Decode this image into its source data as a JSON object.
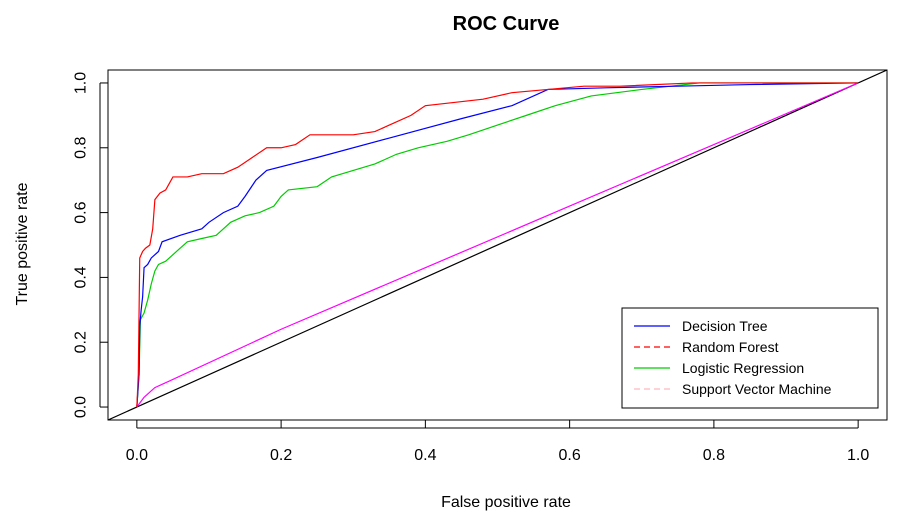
{
  "chart_data": {
    "type": "line",
    "title": "ROC Curve",
    "xlabel": "False positive rate",
    "ylabel": "True positive rate",
    "xlim": [
      -0.04,
      1.04
    ],
    "ylim": [
      -0.04,
      1.04
    ],
    "xticks": [
      "0.0",
      "0.2",
      "0.4",
      "0.6",
      "0.8",
      "1.0"
    ],
    "yticks": [
      "0.0",
      "0.2",
      "0.4",
      "0.6",
      "0.8",
      "1.0"
    ],
    "grid": false,
    "legend_position": "bottom-right",
    "series": [
      {
        "name": "Decision Tree",
        "color": "#0000ff",
        "dash": "solid",
        "points": [
          [
            0,
            0
          ],
          [
            0.003,
            0.1
          ],
          [
            0.004,
            0.25
          ],
          [
            0.006,
            0.3
          ],
          [
            0.008,
            0.34
          ],
          [
            0.01,
            0.43
          ],
          [
            0.015,
            0.44
          ],
          [
            0.02,
            0.46
          ],
          [
            0.03,
            0.48
          ],
          [
            0.035,
            0.51
          ],
          [
            0.06,
            0.53
          ],
          [
            0.09,
            0.55
          ],
          [
            0.1,
            0.57
          ],
          [
            0.12,
            0.6
          ],
          [
            0.14,
            0.62
          ],
          [
            0.15,
            0.65
          ],
          [
            0.165,
            0.7
          ],
          [
            0.18,
            0.73
          ],
          [
            0.25,
            0.77
          ],
          [
            0.35,
            0.83
          ],
          [
            0.45,
            0.89
          ],
          [
            0.52,
            0.93
          ],
          [
            0.57,
            0.98
          ],
          [
            0.65,
            0.985
          ],
          [
            0.75,
            0.99
          ],
          [
            0.85,
            0.995
          ],
          [
            1,
            1
          ]
        ]
      },
      {
        "name": "Random Forest",
        "color": "#ff0000",
        "dash": "dashed",
        "points": [
          [
            0,
            0
          ],
          [
            0.002,
            0.1
          ],
          [
            0.004,
            0.46
          ],
          [
            0.008,
            0.48
          ],
          [
            0.012,
            0.49
          ],
          [
            0.018,
            0.5
          ],
          [
            0.022,
            0.55
          ],
          [
            0.025,
            0.64
          ],
          [
            0.032,
            0.66
          ],
          [
            0.04,
            0.67
          ],
          [
            0.045,
            0.69
          ],
          [
            0.05,
            0.71
          ],
          [
            0.07,
            0.71
          ],
          [
            0.09,
            0.72
          ],
          [
            0.12,
            0.72
          ],
          [
            0.14,
            0.74
          ],
          [
            0.16,
            0.77
          ],
          [
            0.18,
            0.8
          ],
          [
            0.2,
            0.8
          ],
          [
            0.22,
            0.81
          ],
          [
            0.24,
            0.84
          ],
          [
            0.3,
            0.84
          ],
          [
            0.33,
            0.85
          ],
          [
            0.35,
            0.87
          ],
          [
            0.38,
            0.9
          ],
          [
            0.4,
            0.93
          ],
          [
            0.44,
            0.94
          ],
          [
            0.48,
            0.95
          ],
          [
            0.52,
            0.97
          ],
          [
            0.57,
            0.98
          ],
          [
            0.62,
            0.99
          ],
          [
            0.67,
            0.99
          ],
          [
            0.77,
            1
          ],
          [
            1,
            1
          ]
        ]
      },
      {
        "name": "Logistic Regression",
        "color": "#00cc00",
        "dash": "solid",
        "points": [
          [
            0,
            0
          ],
          [
            0.003,
            0.1
          ],
          [
            0.005,
            0.27
          ],
          [
            0.01,
            0.29
          ],
          [
            0.015,
            0.33
          ],
          [
            0.02,
            0.38
          ],
          [
            0.025,
            0.42
          ],
          [
            0.03,
            0.44
          ],
          [
            0.04,
            0.45
          ],
          [
            0.05,
            0.47
          ],
          [
            0.06,
            0.49
          ],
          [
            0.07,
            0.51
          ],
          [
            0.09,
            0.52
          ],
          [
            0.11,
            0.53
          ],
          [
            0.12,
            0.55
          ],
          [
            0.13,
            0.57
          ],
          [
            0.15,
            0.59
          ],
          [
            0.17,
            0.6
          ],
          [
            0.19,
            0.62
          ],
          [
            0.2,
            0.65
          ],
          [
            0.21,
            0.67
          ],
          [
            0.25,
            0.68
          ],
          [
            0.27,
            0.71
          ],
          [
            0.3,
            0.73
          ],
          [
            0.33,
            0.75
          ],
          [
            0.36,
            0.78
          ],
          [
            0.39,
            0.8
          ],
          [
            0.43,
            0.82
          ],
          [
            0.46,
            0.84
          ],
          [
            0.5,
            0.87
          ],
          [
            0.54,
            0.9
          ],
          [
            0.58,
            0.93
          ],
          [
            0.63,
            0.96
          ],
          [
            0.7,
            0.98
          ],
          [
            0.78,
            1
          ],
          [
            1,
            1
          ]
        ]
      },
      {
        "name": "Support Vector Machine",
        "color": "#ff00ff",
        "dash": "solid",
        "legend_color": "#ffb6c1",
        "legend_dash": "dashed",
        "points": [
          [
            0,
            0
          ],
          [
            0.01,
            0.03
          ],
          [
            0.025,
            0.06
          ],
          [
            0.04,
            0.075
          ],
          [
            0.2,
            0.24
          ],
          [
            0.4,
            0.43
          ],
          [
            0.6,
            0.62
          ],
          [
            0.8,
            0.81
          ],
          [
            1,
            1
          ]
        ]
      }
    ],
    "reference_line": {
      "color": "#000000",
      "points": [
        [
          -0.04,
          -0.04
        ],
        [
          1.04,
          1.04
        ]
      ]
    }
  }
}
